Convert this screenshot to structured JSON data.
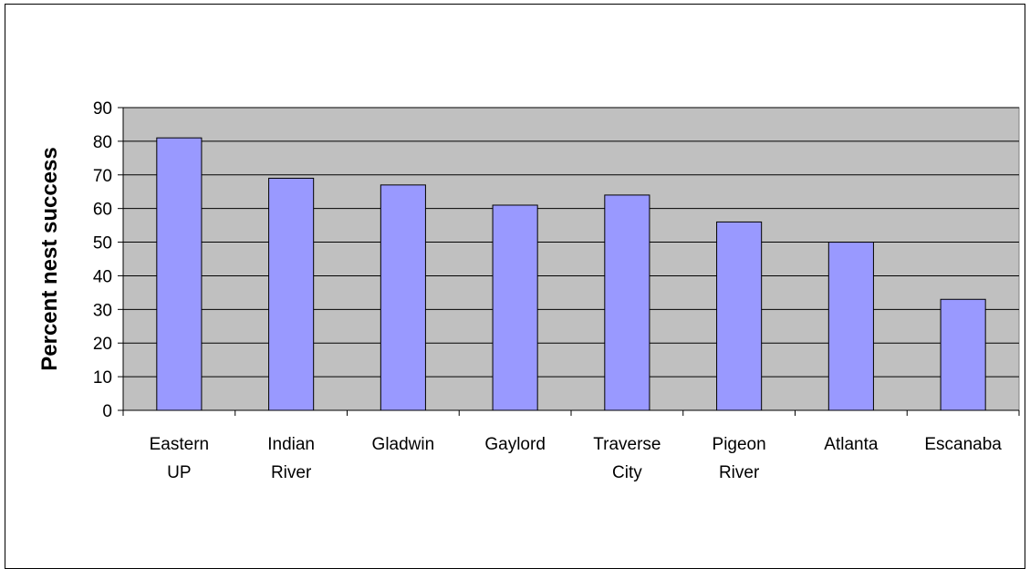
{
  "chart_data": {
    "type": "bar",
    "title": "",
    "xlabel": "",
    "ylabel": "Percent nest success",
    "categories": [
      [
        "Eastern",
        "UP"
      ],
      [
        "Indian",
        "River"
      ],
      [
        "Gladwin"
      ],
      [
        "Gaylord"
      ],
      [
        "Traverse",
        "City"
      ],
      [
        "Pigeon",
        "River"
      ],
      [
        "Atlanta"
      ],
      [
        "Escanaba"
      ]
    ],
    "values": [
      81,
      69,
      67,
      61,
      64,
      56,
      50,
      33
    ],
    "ylim": [
      0,
      90
    ],
    "yticks": [
      0,
      10,
      20,
      30,
      40,
      50,
      60,
      70,
      80,
      90
    ],
    "grid": true,
    "legend": "none",
    "colors": {
      "bar_fill": "#9999ff",
      "plot_background": "#c0c0c0",
      "gridline": "#000000"
    }
  }
}
